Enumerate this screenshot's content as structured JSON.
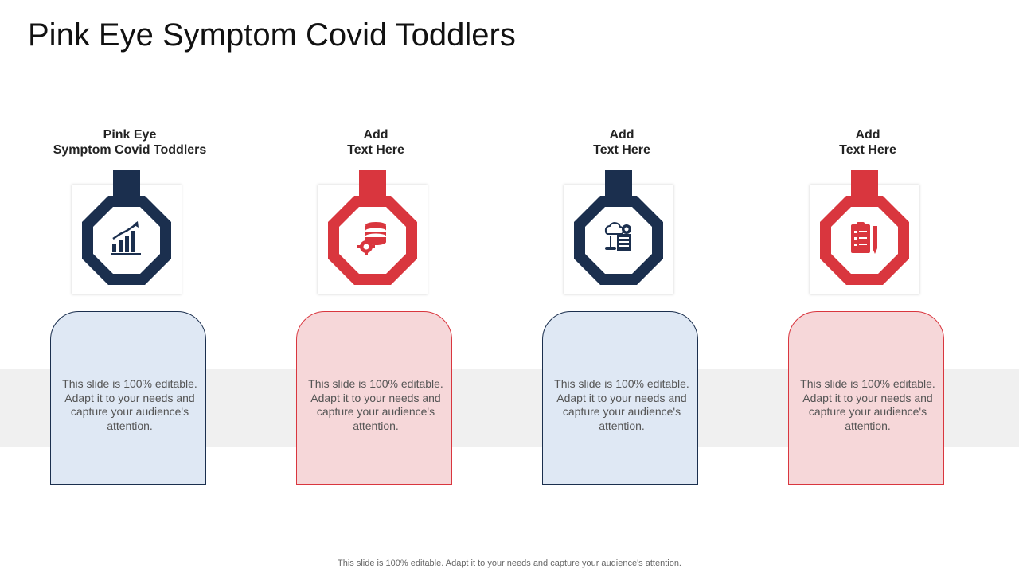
{
  "title": "Pink Eye Symptom Covid Toddlers",
  "colors": {
    "navy": "#1b2f4e",
    "red": "#d9363e",
    "navy_fill": "#dfe8f4",
    "red_fill": "#f6d7d9",
    "band": "#f0f0f0"
  },
  "columns": [
    {
      "heading_line1": "Pink Eye",
      "heading_line2": "Symptom Covid Toddlers",
      "icon": "bar-chart-growth-icon",
      "theme": "navy",
      "body": "This slide is 100% editable. Adapt it to your needs and capture your audience's attention."
    },
    {
      "heading_line1": "Add",
      "heading_line2": "Text Here",
      "icon": "database-gear-icon",
      "theme": "red",
      "body": "This slide is 100% editable. Adapt it to your needs and capture your audience's attention."
    },
    {
      "heading_line1": "Add",
      "heading_line2": "Text Here",
      "icon": "cloud-gear-checklist-icon",
      "theme": "navy",
      "body": "This slide is 100% editable. Adapt it to your needs and capture your audience's attention."
    },
    {
      "heading_line1": "Add",
      "heading_line2": "Text Here",
      "icon": "clipboard-checklist-icon",
      "theme": "red",
      "body": "This slide is 100% editable. Adapt it to your needs and capture your audience's attention."
    }
  ],
  "footer": "This slide is 100% editable. Adapt it to your needs and capture your audience's attention."
}
